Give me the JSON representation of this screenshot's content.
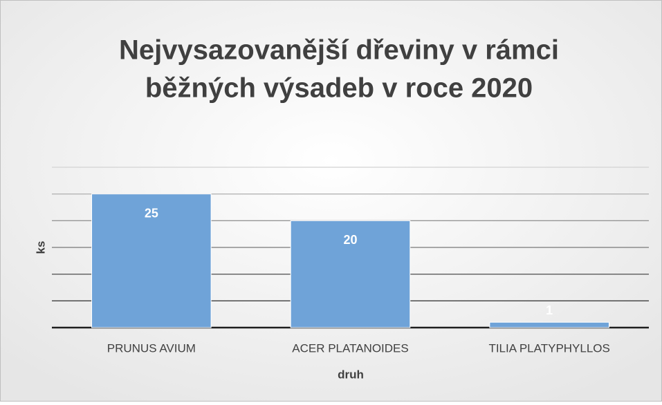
{
  "chart_data": {
    "type": "bar",
    "title": [
      "Nejvysazovanější dřeviny v rámci",
      "běžných výsadeb v roce 2020"
    ],
    "xlabel": "druh",
    "ylabel": "ks",
    "categories": [
      "PRUNUS AVIUM",
      "ACER PLATANOIDES",
      "TILIA PLATYPHYLLOS"
    ],
    "values": [
      25,
      20,
      1
    ],
    "color": "#6fa3d8",
    "ylim": [
      0,
      30
    ],
    "yticks": [
      0,
      5,
      10,
      15,
      20,
      25,
      30
    ],
    "grid": true
  }
}
